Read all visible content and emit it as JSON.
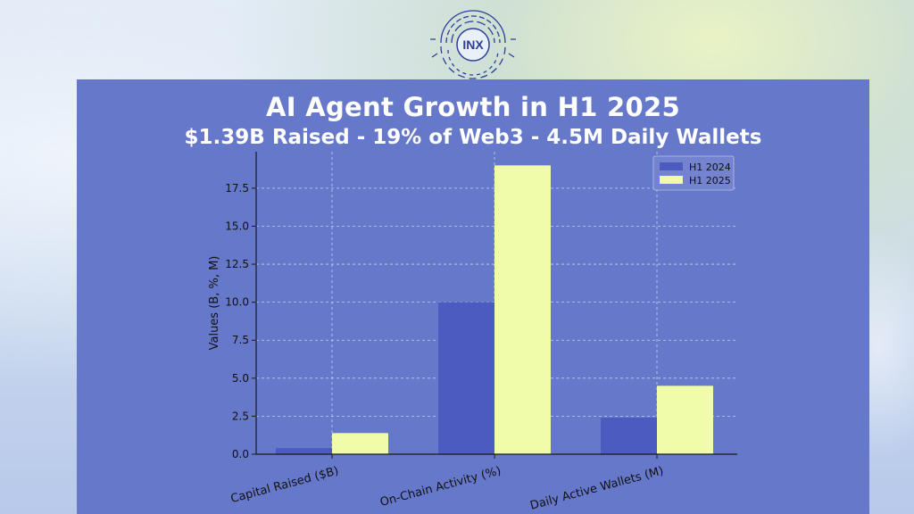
{
  "logo": {
    "text": "INX"
  },
  "chart_data": {
    "type": "bar",
    "title": "AI Agent Growth in H1 2025",
    "subtitle": "$1.39B Raised - 19% of Web3 - 4.5M Daily Wallets",
    "xlabel": "",
    "ylabel": "Values (B, %, M)",
    "categories": [
      "Capital Raised ($B)",
      "On-Chain Activity (%)",
      "Daily Active Wallets (M)"
    ],
    "series": [
      {
        "name": "H1 2024",
        "values": [
          0.4,
          10.0,
          2.4
        ],
        "color": "#4b5bbf"
      },
      {
        "name": "H1 2025",
        "values": [
          1.39,
          19.0,
          4.5
        ],
        "color": "#f0fcaa"
      }
    ],
    "ylim": [
      0,
      19.9
    ],
    "yticks": [
      0.0,
      2.5,
      5.0,
      7.5,
      10.0,
      12.5,
      15.0,
      17.5
    ],
    "ytick_labels": [
      "0.0",
      "2.5",
      "5.0",
      "7.5",
      "10.0",
      "12.5",
      "15.0",
      "17.5"
    ],
    "grid": true,
    "legend_position": "top-right"
  }
}
